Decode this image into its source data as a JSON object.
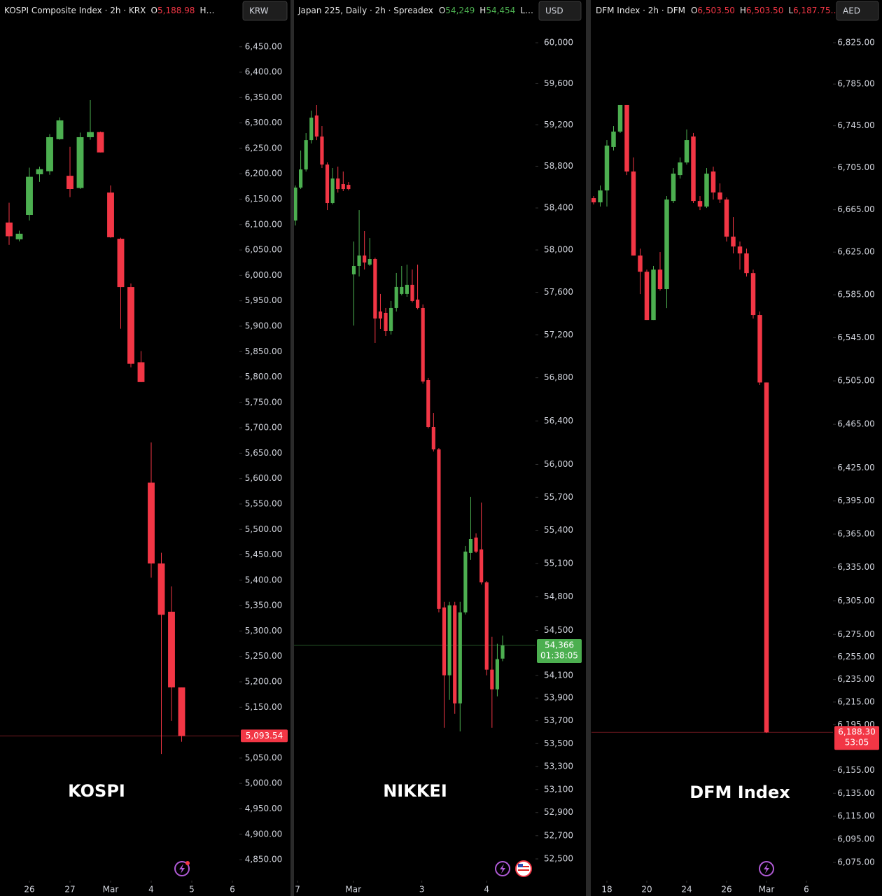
{
  "chart_data": [
    {
      "type": "candlestick",
      "title": "KOSPI Composite Index · 2h · KRX",
      "header_items": [
        [
          "O",
          "5,188.98"
        ]
      ],
      "header_tail": "H…",
      "currency": "KRW",
      "watermark": "KOSPI",
      "log_scale": false,
      "up_color": "#4caf50",
      "down_color": "#f23645",
      "open": [
        6104,
        6071,
        6119,
        6199,
        6205,
        6268,
        6196,
        6172,
        6272,
        6282,
        6163,
        6072,
        5977,
        5829,
        5592,
        5433,
        5338,
        5188.98
      ],
      "high": [
        6143,
        6088,
        6212,
        6214,
        6278,
        6311,
        6253,
        6281,
        6345,
        6283,
        6177,
        6074,
        5984,
        5851,
        5671,
        5454,
        5388,
        5188.98
      ],
      "low": [
        6060,
        6067,
        6108,
        6184,
        6198,
        6267,
        6154,
        6170,
        6267,
        6242,
        6074,
        5895,
        5819,
        5790,
        5405,
        5058,
        5123,
        5082
      ],
      "close": [
        6077,
        6082,
        6194,
        6209,
        6272,
        6305,
        6170,
        6272,
        6282,
        6242,
        6075,
        5977,
        5826,
        5790,
        5433,
        5332,
        5189,
        5093.54
      ],
      "last_price": 5093.54,
      "last_price_label": "5,093.54",
      "xlim": [
        -0.897,
        22.69
      ],
      "xticks": [
        {
          "value": 2,
          "label": "26"
        },
        {
          "value": 6,
          "label": "27"
        },
        {
          "value": 10,
          "label": "Mar"
        },
        {
          "value": 14,
          "label": "4"
        },
        {
          "value": 18,
          "label": "5"
        },
        {
          "value": 22,
          "label": "6"
        }
      ],
      "ylim": [
        4806,
        6542
      ],
      "yticks": [
        {
          "value": 6450,
          "label": "6,450.00"
        },
        {
          "value": 6400,
          "label": "6,400.00"
        },
        {
          "value": 6350,
          "label": "6,350.00"
        },
        {
          "value": 6300,
          "label": "6,300.00"
        },
        {
          "value": 6250,
          "label": "6,250.00"
        },
        {
          "value": 6200,
          "label": "6,200.00"
        },
        {
          "value": 6150,
          "label": "6,150.00"
        },
        {
          "value": 6100,
          "label": "6,100.00"
        },
        {
          "value": 6050,
          "label": "6,050.00"
        },
        {
          "value": 6000,
          "label": "6,000.00"
        },
        {
          "value": 5950,
          "label": "5,950.00"
        },
        {
          "value": 5900,
          "label": "5,900.00"
        },
        {
          "value": 5850,
          "label": "5,850.00"
        },
        {
          "value": 5800,
          "label": "5,800.00"
        },
        {
          "value": 5750,
          "label": "5,750.00"
        },
        {
          "value": 5700,
          "label": "5,700.00"
        },
        {
          "value": 5650,
          "label": "5,650.00"
        },
        {
          "value": 5600,
          "label": "5,600.00"
        },
        {
          "value": 5550,
          "label": "5,550.00"
        },
        {
          "value": 5500,
          "label": "5,500.00"
        },
        {
          "value": 5450,
          "label": "5,450.00"
        },
        {
          "value": 5400,
          "label": "5,400.00"
        },
        {
          "value": 5350,
          "label": "5,350.00"
        },
        {
          "value": 5300,
          "label": "5,300.00"
        },
        {
          "value": 5250,
          "label": "5,250.00"
        },
        {
          "value": 5200,
          "label": "5,200.00"
        },
        {
          "value": 5150,
          "label": "5,150.00"
        },
        {
          "value": 5050,
          "label": "5,050.00"
        },
        {
          "value": 5000,
          "label": "5,000.00"
        },
        {
          "value": 4950,
          "label": "4,950.00"
        },
        {
          "value": 4900,
          "label": "4,900.00"
        },
        {
          "value": 4850,
          "label": "4,850.00"
        }
      ]
    },
    {
      "type": "candlestick",
      "title": "Japan 225, Daily · 2h · Spreadex",
      "header_items": [
        [
          "O",
          "54,249"
        ],
        [
          "H",
          "54,454"
        ]
      ],
      "header_tail": "L…",
      "currency": "USD",
      "watermark": "NIKKEI",
      "log_scale": true,
      "up_color": "#4caf50",
      "down_color": "#f23645",
      "open": [
        58280,
        58595,
        58769,
        59052,
        59290,
        59086,
        58816,
        58447,
        58682,
        58628,
        58621,
        57769,
        57848,
        57947,
        57861,
        57914,
        57419,
        57406,
        57235,
        57452,
        57584,
        57584,
        57670,
        57531,
        57452,
        56778,
        56344,
        56138,
        54705,
        54101,
        54724,
        53853,
        54661,
        55195,
        55334,
        55227,
        54930,
        54151,
        53977,
        54249
      ],
      "high": [
        58615,
        58951,
        59120,
        59337,
        59392,
        59188,
        58837,
        58783,
        58796,
        58749,
        58648,
        58080,
        58380,
        58180,
        58113,
        57927,
        57584,
        57452,
        57518,
        57782,
        57848,
        57861,
        57815,
        57861,
        57485,
        56798,
        56473,
        56151,
        54755,
        54755,
        54755,
        54755,
        55258,
        55703,
        55372,
        55652,
        54942,
        54443,
        54381,
        54454
      ],
      "low": [
        58233,
        58581,
        58749,
        59019,
        59052,
        58783,
        58380,
        58434,
        58547,
        58561,
        58568,
        57287,
        57749,
        57815,
        57848,
        57124,
        57255,
        57189,
        57203,
        57419,
        57571,
        57557,
        57504,
        57439,
        56746,
        56331,
        56119,
        54661,
        53638,
        53884,
        53761,
        53607,
        54642,
        55132,
        55195,
        54911,
        54101,
        53638,
        53915,
        54226
      ],
      "close": [
        58595,
        58769,
        59052,
        59269,
        59086,
        58816,
        58447,
        58682,
        58581,
        58581,
        58581,
        57848,
        57947,
        57881,
        57914,
        57353,
        57353,
        57235,
        57452,
        57650,
        57650,
        57670,
        57518,
        57452,
        56765,
        56344,
        56138,
        54692,
        54101,
        54724,
        53853,
        54661,
        55207,
        55321,
        55207,
        54930,
        54151,
        53977,
        54244,
        54366
      ],
      "last_price": 54366,
      "last_price_label": "54,366",
      "countdown": "01:38:05",
      "xlim": [
        -0.2635,
        45.19
      ],
      "xticks": [
        {
          "value": 0.4,
          "label": "7"
        },
        {
          "value": 10.9,
          "label": "Mar"
        },
        {
          "value": 23.8,
          "label": "3"
        },
        {
          "value": 36,
          "label": "4"
        }
      ],
      "ylim": [
        52302,
        60421
      ],
      "yticks": [
        {
          "value": 60000,
          "label": "60,000"
        },
        {
          "value": 59600,
          "label": "59,600"
        },
        {
          "value": 59200,
          "label": "59,200"
        },
        {
          "value": 58800,
          "label": "58,800"
        },
        {
          "value": 58400,
          "label": "58,400"
        },
        {
          "value": 58000,
          "label": "58,000"
        },
        {
          "value": 57600,
          "label": "57,600"
        },
        {
          "value": 57200,
          "label": "57,200"
        },
        {
          "value": 56800,
          "label": "56,800"
        },
        {
          "value": 56400,
          "label": "56,400"
        },
        {
          "value": 56000,
          "label": "56,000"
        },
        {
          "value": 55700,
          "label": "55,700"
        },
        {
          "value": 55400,
          "label": "55,400"
        },
        {
          "value": 55100,
          "label": "55,100"
        },
        {
          "value": 54800,
          "label": "54,800"
        },
        {
          "value": 54500,
          "label": "54,500"
        },
        {
          "value": 54100,
          "label": "54,100"
        },
        {
          "value": 53900,
          "label": "53,900"
        },
        {
          "value": 53700,
          "label": "53,700"
        },
        {
          "value": 53500,
          "label": "53,500"
        },
        {
          "value": 53300,
          "label": "53,300"
        },
        {
          "value": 53100,
          "label": "53,100"
        },
        {
          "value": 52900,
          "label": "52,900"
        },
        {
          "value": 52700,
          "label": "52,700"
        },
        {
          "value": 52500,
          "label": "52,500"
        }
      ]
    },
    {
      "type": "candlestick",
      "title": "DFM Index · 2h · DFM",
      "header_items": [
        [
          "O",
          "6,503.50"
        ],
        [
          "H",
          "6,503.50"
        ],
        [
          "L",
          "6,187.75…"
        ]
      ],
      "currency": "AED",
      "watermark": "DFM Index",
      "log_scale": true,
      "up_color": "#4caf50",
      "down_color": "#f23645",
      "open": [
        6676.0,
        6672.0,
        6683.3,
        6724.7,
        6739.4,
        6764.9,
        6701.3,
        6621.8,
        6606.6,
        6561.5,
        6608.6,
        6590.3,
        6673.3,
        6697.9,
        6709.9,
        6734.7,
        6673.3,
        6668.0,
        6701.3,
        6681.4,
        6674.7,
        6639.6,
        6630.3,
        6623.8,
        6605.3,
        6566.1,
        6503.5
      ],
      "high": [
        6678.0,
        6688.0,
        6731.3,
        6744.7,
        6764.9,
        6764.9,
        6714.7,
        6628.3,
        6608.6,
        6612.0,
        6625.1,
        6678.0,
        6704.6,
        6714.7,
        6741.4,
        6738.1,
        6678.0,
        6704.6,
        6705.9,
        6690.0,
        6676.7,
        6658.1,
        6635.0,
        6628.3,
        6608.6,
        6569.4,
        6503.5
      ],
      "low": [
        6670.0,
        6668.0,
        6668.0,
        6721.3,
        6738.1,
        6697.9,
        6621.8,
        6585.7,
        6561.5,
        6561.5,
        6589.0,
        6572.6,
        6671.4,
        6694.6,
        6707.9,
        6671.4,
        6664.7,
        6666.7,
        6674.7,
        6671.4,
        6635.0,
        6623.8,
        6608.6,
        6602.1,
        6562.8,
        6501.2,
        6187.75
      ],
      "close": [
        6672.0,
        6683.3,
        6726.0,
        6739.4,
        6764.9,
        6701.3,
        6621.8,
        6606.6,
        6561.5,
        6608.6,
        6590.3,
        6674.7,
        6699.3,
        6709.9,
        6731.3,
        6673.3,
        6668.0,
        6699.3,
        6681.4,
        6674.7,
        6639.6,
        6630.3,
        6623.8,
        6605.3,
        6566.1,
        6503.5,
        6188.3
      ],
      "last_price": 6188.3,
      "last_price_label": "6,188.30",
      "countdown": "53:05",
      "xlim": [
        -0.316,
        36.0
      ],
      "xticks": [
        {
          "value": 2,
          "label": "18"
        },
        {
          "value": 8,
          "label": "20"
        },
        {
          "value": 14,
          "label": "24"
        },
        {
          "value": 20,
          "label": "26"
        },
        {
          "value": 26,
          "label": "Mar"
        },
        {
          "value": 32,
          "label": "6"
        }
      ],
      "ylim": [
        6058.2,
        6866.5
      ],
      "yticks": [
        {
          "value": 6825,
          "label": "6,825.00"
        },
        {
          "value": 6785,
          "label": "6,785.00"
        },
        {
          "value": 6745,
          "label": "6,745.00"
        },
        {
          "value": 6705,
          "label": "6,705.00"
        },
        {
          "value": 6665,
          "label": "6,665.00"
        },
        {
          "value": 6625,
          "label": "6,625.00"
        },
        {
          "value": 6585,
          "label": "6,585.00"
        },
        {
          "value": 6545,
          "label": "6,545.00"
        },
        {
          "value": 6505,
          "label": "6,505.00"
        },
        {
          "value": 6465,
          "label": "6,465.00"
        },
        {
          "value": 6425,
          "label": "6,425.00"
        },
        {
          "value": 6395,
          "label": "6,395.00"
        },
        {
          "value": 6365,
          "label": "6,365.00"
        },
        {
          "value": 6335,
          "label": "6,335.00"
        },
        {
          "value": 6305,
          "label": "6,305.00"
        },
        {
          "value": 6275,
          "label": "6,275.00"
        },
        {
          "value": 6255,
          "label": "6,255.00"
        },
        {
          "value": 6235,
          "label": "6,235.00"
        },
        {
          "value": 6215,
          "label": "6,215.00"
        },
        {
          "value": 6195,
          "label": "6,195.00"
        },
        {
          "value": 6155,
          "label": "6,155.00"
        },
        {
          "value": 6135,
          "label": "6,135.00"
        },
        {
          "value": 6115,
          "label": "6,115.00"
        },
        {
          "value": 6095,
          "label": "6,095.00"
        },
        {
          "value": 6075,
          "label": "6,075.00"
        }
      ]
    }
  ]
}
